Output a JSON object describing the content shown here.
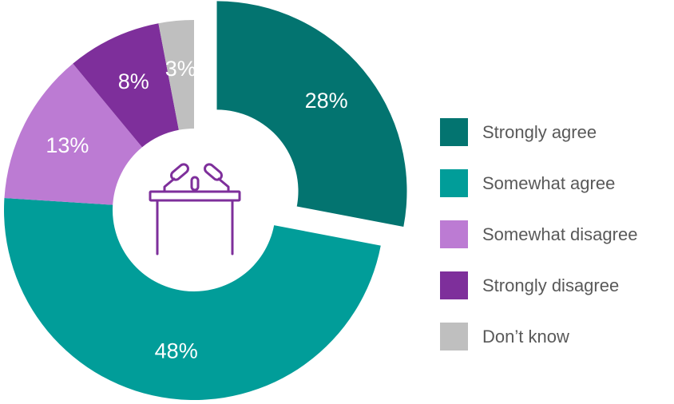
{
  "chart_data": {
    "type": "pie",
    "variant": "donut",
    "exploded": "Strongly agree",
    "categories": [
      "Strongly agree",
      "Somewhat agree",
      "Somewhat disagree",
      "Strongly disagree",
      "Don’t know"
    ],
    "values": [
      28,
      48,
      13,
      8,
      3
    ],
    "labels": [
      "28%",
      "48%",
      "13%",
      "8%",
      "3%"
    ],
    "colors": [
      "#037470",
      "#019D99",
      "#BC7BD3",
      "#7E2F9B",
      "#BFBFBF"
    ],
    "legend_position": "right",
    "center_icon": "podium-microphones-icon"
  }
}
